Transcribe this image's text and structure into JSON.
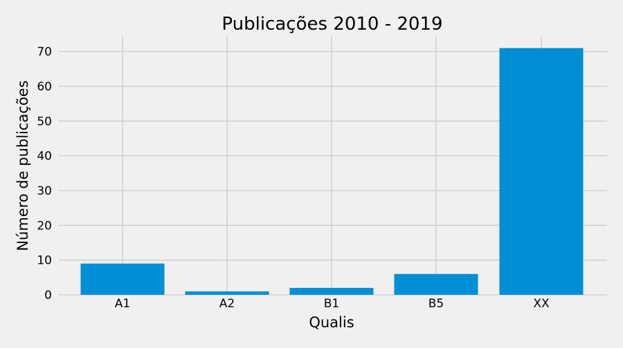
{
  "colors": {
    "background": "#f0f0f0",
    "grid": "#cbcbcb",
    "bar": "#008fd5",
    "text": "#000000"
  },
  "chart_data": {
    "type": "bar",
    "title": "Publicações 2010 - 2019",
    "xlabel": "Qualis",
    "ylabel": "Número de publicações",
    "categories": [
      "A1",
      "A2",
      "B1",
      "B5",
      "XX"
    ],
    "values": [
      9,
      1,
      2,
      6,
      71
    ],
    "ylim": [
      0,
      74.5
    ],
    "yticks": [
      0,
      10,
      20,
      30,
      40,
      50,
      60,
      70
    ],
    "grid": true,
    "legend": "none"
  }
}
